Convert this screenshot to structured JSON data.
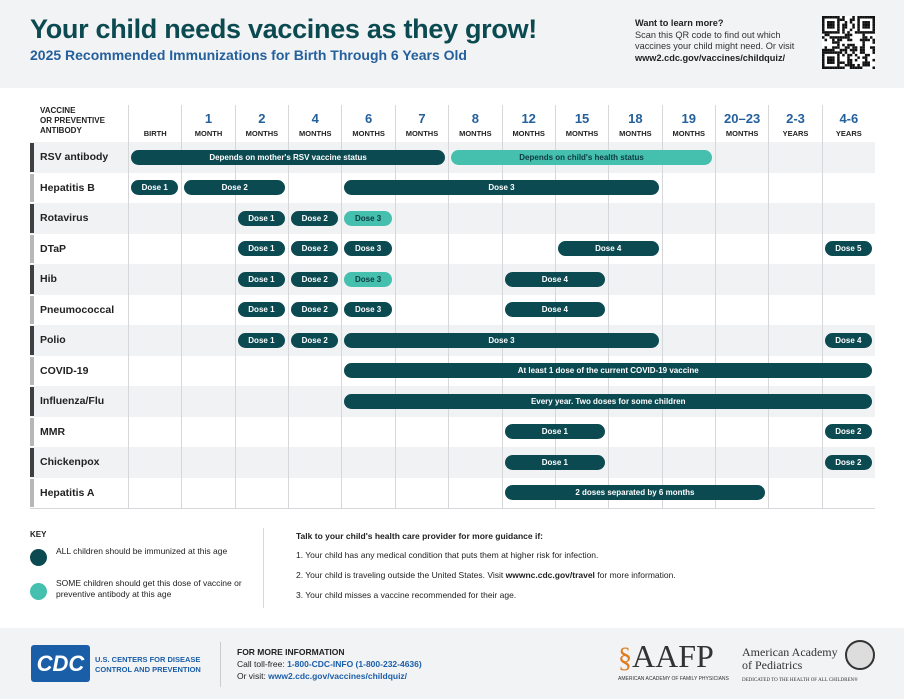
{
  "header": {
    "title": "Your child needs vaccines as they grow!",
    "subtitle": "2025 Recommended Immunizations for Birth Through 6 Years Old",
    "learn_title": "Want to learn more?",
    "learn_text": "Scan this QR code to find out which vaccines your child might need. Or visit",
    "learn_url": "www2.cdc.gov/vaccines/childquiz/"
  },
  "colors": {
    "all": "#0c4a52",
    "some": "#45bfae",
    "title": "#0b4a50",
    "accent": "#24609c"
  },
  "table": {
    "vaccine_header": [
      "VACCINE",
      "OR PREVENTIVE",
      "ANTIBODY"
    ],
    "columns": [
      {
        "n": "",
        "u": "BIRTH"
      },
      {
        "n": "1",
        "u": "MONTH"
      },
      {
        "n": "2",
        "u": "MONTHS"
      },
      {
        "n": "4",
        "u": "MONTHS"
      },
      {
        "n": "6",
        "u": "MONTHS"
      },
      {
        "n": "7",
        "u": "MONTHS"
      },
      {
        "n": "8",
        "u": "MONTHS"
      },
      {
        "n": "12",
        "u": "MONTHS"
      },
      {
        "n": "15",
        "u": "MONTHS"
      },
      {
        "n": "18",
        "u": "MONTHS"
      },
      {
        "n": "19",
        "u": "MONTHS"
      },
      {
        "n": "20–23",
        "u": "MONTHS"
      },
      {
        "n": "2-3",
        "u": "YEARS"
      },
      {
        "n": "4-6",
        "u": "YEARS"
      }
    ],
    "rows": [
      {
        "name": "RSV antibody",
        "bars": [
          {
            "from": "Birth",
            "to": "7 months",
            "s": 0,
            "e": 5,
            "type": "all",
            "label": "Depends on mother's RSV vaccine status"
          },
          {
            "from": "8 months",
            "to": "19 months",
            "s": 6,
            "e": 10,
            "type": "some",
            "label": "Depends on child's health status"
          }
        ]
      },
      {
        "name": "Hepatitis B",
        "bars": [
          {
            "s": 0,
            "e": 0,
            "type": "all",
            "label": "Dose 1"
          },
          {
            "s": 1,
            "e": 2,
            "type": "all",
            "label": "Dose 2"
          },
          {
            "s": 4,
            "e": 9,
            "type": "all",
            "label": "Dose 3"
          }
        ]
      },
      {
        "name": "Rotavirus",
        "bars": [
          {
            "s": 2,
            "e": 2,
            "type": "all",
            "label": "Dose 1"
          },
          {
            "s": 3,
            "e": 3,
            "type": "all",
            "label": "Dose 2"
          },
          {
            "s": 4,
            "e": 4,
            "type": "some",
            "label": "Dose 3"
          }
        ]
      },
      {
        "name": "DTaP",
        "bars": [
          {
            "s": 2,
            "e": 2,
            "type": "all",
            "label": "Dose 1"
          },
          {
            "s": 3,
            "e": 3,
            "type": "all",
            "label": "Dose 2"
          },
          {
            "s": 4,
            "e": 4,
            "type": "all",
            "label": "Dose 3"
          },
          {
            "s": 8,
            "e": 9,
            "type": "all",
            "label": "Dose 4"
          },
          {
            "s": 13,
            "e": 13,
            "type": "all",
            "label": "Dose 5"
          }
        ]
      },
      {
        "name": "Hib",
        "bars": [
          {
            "s": 2,
            "e": 2,
            "type": "all",
            "label": "Dose 1"
          },
          {
            "s": 3,
            "e": 3,
            "type": "all",
            "label": "Dose 2"
          },
          {
            "s": 4,
            "e": 4,
            "type": "some",
            "label": "Dose 3"
          },
          {
            "s": 7,
            "e": 8,
            "type": "all",
            "label": "Dose 4"
          }
        ]
      },
      {
        "name": "Pneumococcal",
        "bars": [
          {
            "s": 2,
            "e": 2,
            "type": "all",
            "label": "Dose 1"
          },
          {
            "s": 3,
            "e": 3,
            "type": "all",
            "label": "Dose 2"
          },
          {
            "s": 4,
            "e": 4,
            "type": "all",
            "label": "Dose 3"
          },
          {
            "s": 7,
            "e": 8,
            "type": "all",
            "label": "Dose 4"
          }
        ]
      },
      {
        "name": "Polio",
        "bars": [
          {
            "s": 2,
            "e": 2,
            "type": "all",
            "label": "Dose 1"
          },
          {
            "s": 3,
            "e": 3,
            "type": "all",
            "label": "Dose 2"
          },
          {
            "s": 4,
            "e": 9,
            "type": "all",
            "label": "Dose 3"
          },
          {
            "s": 13,
            "e": 13,
            "type": "all",
            "label": "Dose 4"
          }
        ]
      },
      {
        "name": "COVID-19",
        "bars": [
          {
            "s": 4,
            "e": 13,
            "type": "all",
            "label": "At least 1 dose of the current COVID-19 vaccine"
          }
        ]
      },
      {
        "name": "Influenza/Flu",
        "bars": [
          {
            "s": 4,
            "e": 13,
            "type": "all",
            "label": "Every year. Two doses for some children"
          }
        ]
      },
      {
        "name": "MMR",
        "bars": [
          {
            "s": 7,
            "e": 8,
            "type": "all",
            "label": "Dose 1"
          },
          {
            "s": 13,
            "e": 13,
            "type": "all",
            "label": "Dose 2"
          }
        ]
      },
      {
        "name": "Chickenpox",
        "bars": [
          {
            "s": 7,
            "e": 8,
            "type": "all",
            "label": "Dose 1"
          },
          {
            "s": 13,
            "e": 13,
            "type": "all",
            "label": "Dose 2"
          }
        ]
      },
      {
        "name": "Hepatitis A",
        "bars": [
          {
            "s": 7,
            "e": 11,
            "type": "all",
            "label": "2 doses separated by 6 months"
          }
        ]
      }
    ]
  },
  "key": {
    "title": "KEY",
    "all_text": "ALL children should be immunized at this age",
    "some_text": "SOME children should get this dose of vaccine or preventive antibody at this age"
  },
  "guidance": {
    "title": "Talk to your child's health care provider for more guidance if:",
    "item1": "1. Your child has any medical condition that puts them at higher risk for infection.",
    "item2_pre": "2. Your child is traveling outside the United States. Visit ",
    "item2_link": "wwwnc.cdc.gov/travel",
    "item2_post": " for more information.",
    "item3": "3. Your child misses a vaccine recommended for their age."
  },
  "footer": {
    "cdc_logo": "CDC",
    "cdc_line1": "U.S. CENTERS FOR DISEASE",
    "cdc_line2": "CONTROL AND PREVENTION",
    "info_title": "FOR MORE INFORMATION",
    "call_label": "Call toll-free: ",
    "phone": "1-800-CDC-INFO (1-800-232-4636)",
    "visit_label": "Or visit: ",
    "url": "www2.cdc.gov/vaccines/childquiz/",
    "aafp": "AAFP",
    "aafp_sub": "AMERICAN ACADEMY OF FAMILY PHYSICIANS",
    "aap_line1": "American Academy",
    "aap_line2": "of Pediatrics",
    "aap_sub": "DEDICATED TO THE HEALTH OF ALL CHILDREN®"
  }
}
